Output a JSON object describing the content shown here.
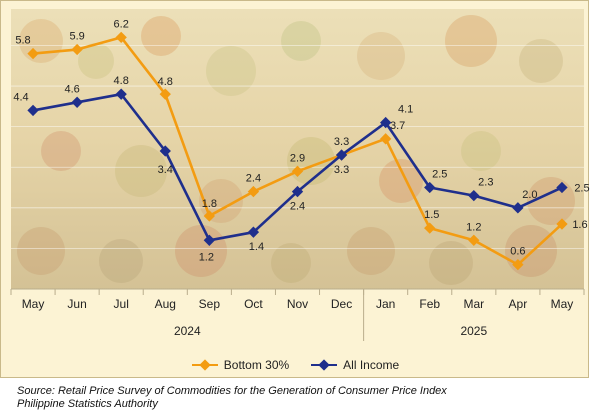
{
  "chart_data": {
    "type": "line",
    "categories": [
      "May",
      "Jun",
      "Jul",
      "Aug",
      "Sep",
      "Oct",
      "Nov",
      "Dec",
      "Jan",
      "Feb",
      "Mar",
      "Apr",
      "May"
    ],
    "year_groups": [
      {
        "label": "2024",
        "from": 0,
        "to": 7
      },
      {
        "label": "2025",
        "from": 8,
        "to": 12
      }
    ],
    "series": [
      {
        "name": "Bottom 30%",
        "color": "#f39c12",
        "values": [
          5.8,
          5.9,
          6.2,
          4.8,
          1.8,
          2.4,
          2.9,
          3.3,
          3.7,
          1.5,
          1.2,
          0.6,
          1.6
        ]
      },
      {
        "name": "All Income",
        "color": "#1f2f8c",
        "values": [
          4.4,
          4.6,
          4.8,
          3.4,
          1.2,
          1.4,
          2.4,
          3.3,
          4.1,
          2.5,
          2.3,
          2.0,
          2.5
        ]
      }
    ],
    "ylim": [
      0,
      6.8
    ],
    "grid": true,
    "legend": "bottom",
    "title": "",
    "xlabel": "",
    "ylabel": ""
  },
  "source": {
    "line1": "Source: Retail Price Survey of Commodities for the Generation of Consumer Price Index",
    "line2": "Philippine Statistics Authority"
  }
}
